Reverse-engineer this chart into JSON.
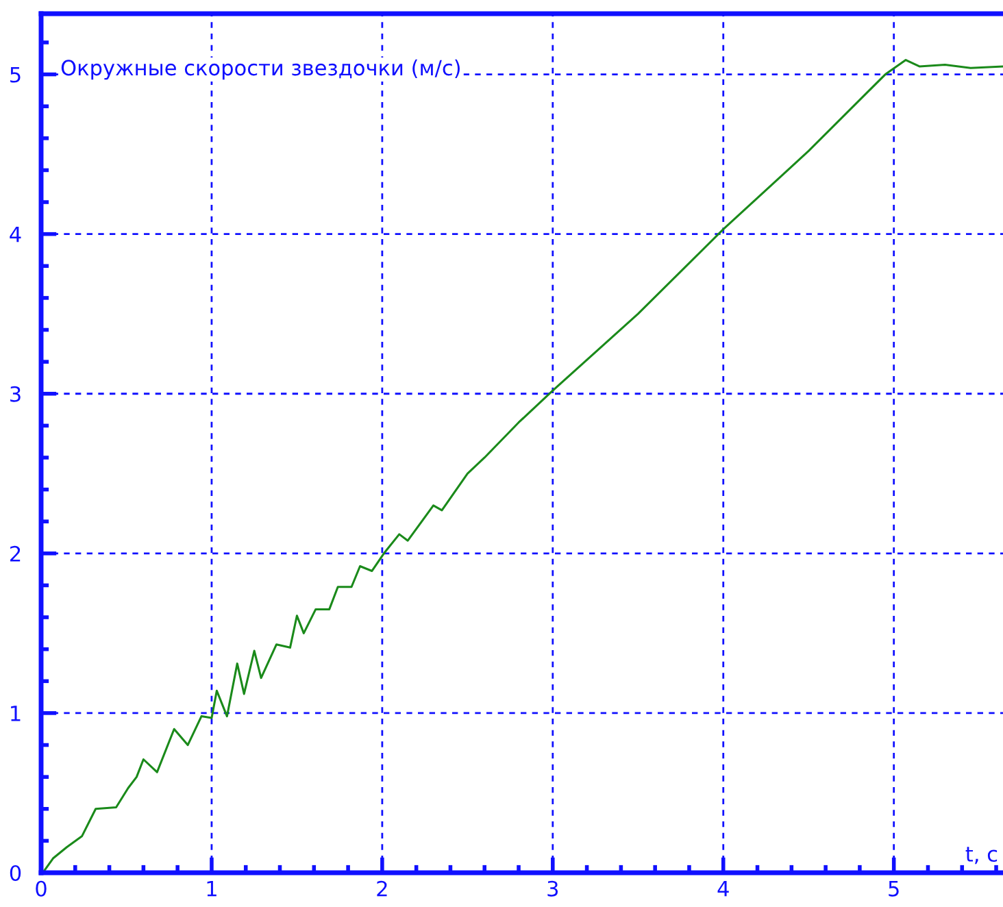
{
  "chart_data": {
    "type": "line",
    "ylabel": "Окружные скорости звездочки (м/с)",
    "xlabel": "t, с",
    "x": [
      0.01,
      0.07,
      0.15,
      0.24,
      0.32,
      0.44,
      0.51,
      0.56,
      0.6,
      0.68,
      0.78,
      0.86,
      0.94,
      1.0,
      1.03,
      1.09,
      1.15,
      1.19,
      1.25,
      1.29,
      1.38,
      1.46,
      1.5,
      1.54,
      1.61,
      1.69,
      1.74,
      1.82,
      1.87,
      1.94,
      2.01,
      2.1,
      2.15,
      2.3,
      2.35,
      2.5,
      2.6,
      2.8,
      3.0,
      3.5,
      4.0,
      4.5,
      4.95,
      5.07,
      5.15,
      5.3,
      5.45,
      5.64
    ],
    "series": [
      {
        "color": "#1a8a1a",
        "values": [
          0.0,
          0.09,
          0.16,
          0.23,
          0.4,
          0.41,
          0.53,
          0.6,
          0.71,
          0.63,
          0.9,
          0.8,
          0.98,
          0.97,
          1.14,
          0.98,
          1.31,
          1.12,
          1.39,
          1.22,
          1.43,
          1.41,
          1.61,
          1.5,
          1.65,
          1.65,
          1.79,
          1.79,
          1.92,
          1.89,
          2.0,
          2.12,
          2.08,
          2.3,
          2.27,
          2.5,
          2.6,
          2.82,
          3.02,
          3.5,
          4.03,
          4.52,
          5.0,
          5.09,
          5.05,
          5.06,
          5.04,
          5.05
        ]
      }
    ],
    "xlim": [
      0,
      5.64
    ],
    "ylim": [
      0,
      5.38
    ],
    "xticks": [
      0,
      1,
      2,
      3,
      4,
      5
    ],
    "yticks": [
      0,
      1,
      2,
      3,
      4,
      5
    ],
    "grid": true,
    "marker": "none",
    "line_style": "solid"
  }
}
